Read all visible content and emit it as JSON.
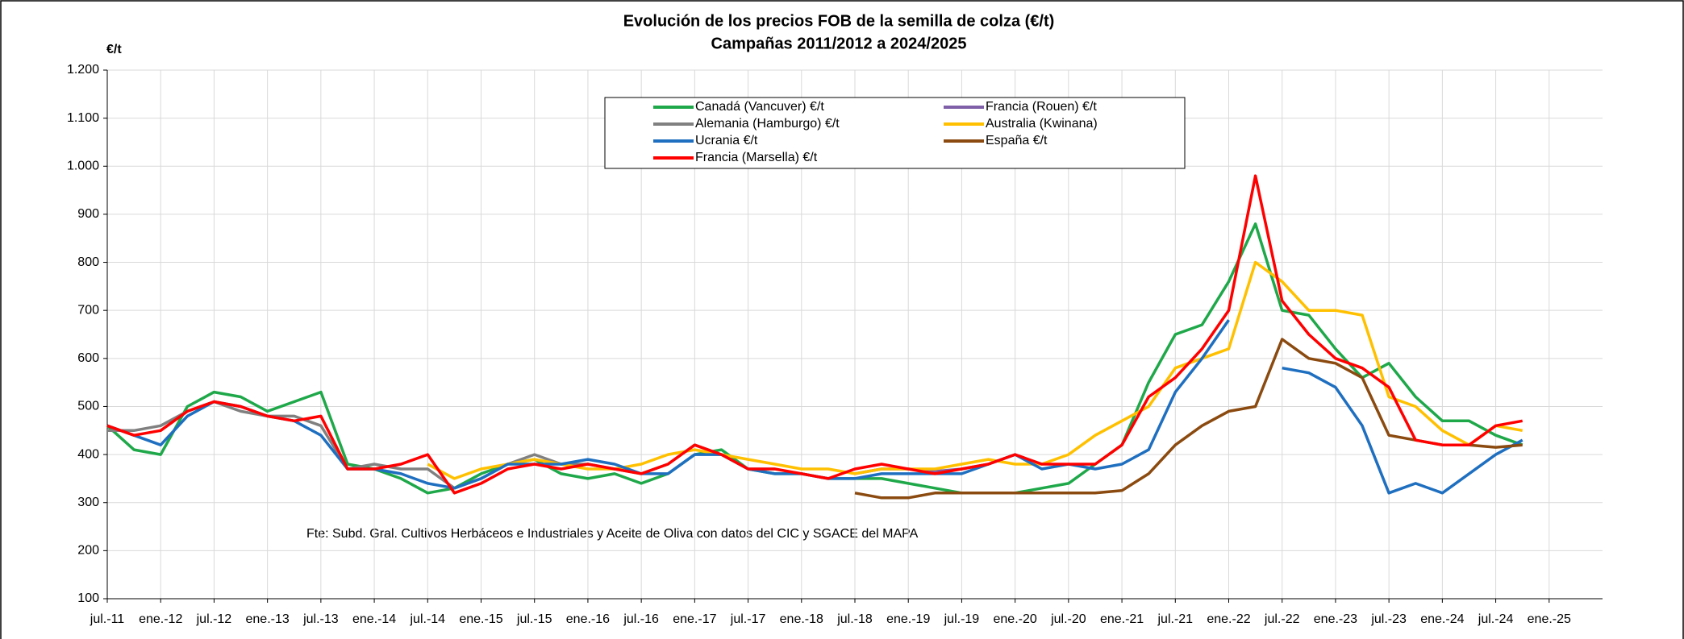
{
  "chart_data": {
    "type": "line",
    "title": "Evolución de los precios FOB de la semilla de colza (€/t)",
    "subtitle": "Campañas 2011/2012 a 2024/2025",
    "y_label": "€/t",
    "annotation": "Fte: Subd. Gral. Cultivos Herbáceos e Industriales y Aceite de Oliva con datos del CIC y SGACE del MAPA",
    "categories": [
      "jul.-11",
      null,
      "ene.-12",
      null,
      "jul.-12",
      null,
      "ene.-13",
      null,
      "jul.-13",
      null,
      "ene.-14",
      null,
      "jul.-14",
      null,
      "ene.-15",
      null,
      "jul.-15",
      null,
      "ene.-16",
      null,
      "jul.-16",
      null,
      "ene.-17",
      null,
      "jul.-17",
      null,
      "ene.-18",
      null,
      "jul.-18",
      null,
      "ene.-19",
      null,
      "jul.-19",
      null,
      "ene.-20",
      null,
      "jul.-20",
      null,
      "ene.-21",
      null,
      "jul.-21",
      null,
      "ene.-22",
      null,
      "jul.-22",
      null,
      "ene.-23",
      null,
      "jul.-23",
      null,
      "ene.-24",
      null,
      "jul.-24",
      null,
      "ene.-25",
      null,
      null
    ],
    "series": [
      {
        "name": "Canadá  (Vancuver)  €/t",
        "color": "#1fa84a",
        "values": [
          460,
          410,
          400,
          500,
          530,
          520,
          490,
          510,
          530,
          380,
          370,
          350,
          320,
          330,
          360,
          380,
          390,
          360,
          350,
          360,
          340,
          360,
          400,
          410,
          370,
          360,
          360,
          350,
          350,
          350,
          340,
          330,
          320,
          320,
          320,
          330,
          340,
          380,
          420,
          550,
          650,
          670,
          760,
          880,
          700,
          690,
          620,
          560,
          590,
          520,
          470,
          470,
          440,
          420,
          null,
          null,
          null
        ]
      },
      {
        "name": "Francia (Rouen) €/t",
        "color": "#7f5fa8",
        "values": [
          null,
          null,
          null,
          null,
          null,
          null,
          null,
          null,
          null,
          null,
          null,
          null,
          null,
          null,
          null,
          null,
          null,
          null,
          null,
          null,
          null,
          null,
          null,
          null,
          null,
          null,
          null,
          null,
          360,
          370,
          370,
          365,
          370,
          380,
          400,
          null,
          null,
          null,
          null,
          null,
          null,
          null,
          null,
          null,
          null,
          null,
          null,
          null,
          null,
          null,
          null,
          null,
          null,
          null,
          null,
          null,
          null
        ]
      },
      {
        "name": "Alemania (Hamburgo) €/t",
        "color": "#808080",
        "values": [
          450,
          450,
          460,
          490,
          510,
          490,
          480,
          480,
          460,
          370,
          380,
          370,
          370,
          330,
          350,
          380,
          400,
          380,
          380,
          370,
          360,
          380,
          420,
          400,
          370,
          370,
          null,
          null,
          null,
          null,
          null,
          null,
          null,
          null,
          null,
          null,
          null,
          null,
          null,
          null,
          null,
          null,
          null,
          null,
          null,
          null,
          null,
          null,
          null,
          null,
          null,
          null,
          null,
          null,
          null,
          null,
          null
        ]
      },
      {
        "name": "Australia (Kwinana)",
        "color": "#ffc000",
        "values": [
          null,
          null,
          null,
          null,
          null,
          null,
          null,
          null,
          null,
          null,
          null,
          null,
          380,
          350,
          370,
          380,
          390,
          380,
          370,
          370,
          380,
          400,
          410,
          400,
          390,
          380,
          370,
          370,
          360,
          370,
          370,
          370,
          380,
          390,
          380,
          380,
          400,
          440,
          470,
          500,
          580,
          600,
          620,
          800,
          760,
          700,
          700,
          690,
          520,
          500,
          450,
          420,
          460,
          450,
          null,
          null,
          null
        ]
      },
      {
        "name": "Ucrania €/t",
        "color": "#1f6fc0",
        "values": [
          460,
          440,
          420,
          480,
          510,
          500,
          480,
          470,
          440,
          370,
          370,
          360,
          340,
          330,
          350,
          380,
          380,
          380,
          390,
          380,
          360,
          360,
          400,
          400,
          370,
          360,
          360,
          350,
          350,
          360,
          360,
          360,
          360,
          380,
          400,
          370,
          380,
          370,
          380,
          410,
          530,
          600,
          680,
          null,
          580,
          570,
          540,
          460,
          320,
          340,
          320,
          360,
          400,
          430,
          null,
          null,
          null
        ]
      },
      {
        "name": "España €/t",
        "color": "#8b4a0f",
        "values": [
          null,
          null,
          null,
          null,
          null,
          null,
          null,
          null,
          null,
          null,
          null,
          null,
          null,
          null,
          null,
          null,
          null,
          null,
          null,
          null,
          null,
          null,
          null,
          null,
          null,
          null,
          null,
          null,
          320,
          310,
          310,
          320,
          320,
          320,
          320,
          320,
          320,
          320,
          325,
          360,
          420,
          460,
          490,
          500,
          640,
          600,
          590,
          560,
          440,
          430,
          420,
          420,
          415,
          420,
          null,
          null,
          null
        ]
      },
      {
        "name": "Francia (Marsella) €/t",
        "color": "#ff0000",
        "values": [
          460,
          440,
          450,
          490,
          510,
          500,
          480,
          470,
          480,
          370,
          370,
          380,
          400,
          320,
          340,
          370,
          380,
          370,
          380,
          370,
          360,
          380,
          420,
          400,
          370,
          370,
          360,
          350,
          370,
          380,
          370,
          360,
          370,
          380,
          400,
          380,
          380,
          380,
          420,
          520,
          560,
          620,
          700,
          980,
          720,
          650,
          600,
          580,
          540,
          430,
          420,
          420,
          460,
          470,
          null,
          null,
          null
        ]
      }
    ],
    "ylim": [
      100,
      1200
    ],
    "yticks": [
      100,
      200,
      300,
      400,
      500,
      600,
      700,
      800,
      900,
      {
        "value": 1000,
        "label": "1.000"
      },
      {
        "value": 1100,
        "label": "1.100"
      },
      {
        "value": 1200,
        "label": "1.200"
      }
    ],
    "grid": true
  }
}
